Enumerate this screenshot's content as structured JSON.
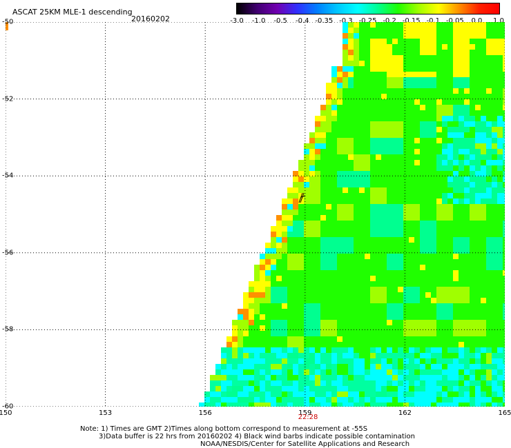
{
  "header": {
    "title": "ASCAT 25KM MLE-1 descending",
    "date": "20160202"
  },
  "colorbar": {
    "labels": [
      "-3.0",
      "-1.0",
      "-0.5",
      "-0.4",
      "-0.35",
      "-0.3",
      "-0.25",
      "-0.2",
      "-0.15",
      "-0.1",
      "-0.05",
      "0.0",
      "1.0"
    ],
    "colors": [
      "#000000",
      "#400070",
      "#7000b0",
      "#3030ff",
      "#0080ff",
      "#00c8ff",
      "#00ffff",
      "#00ff90",
      "#20ff00",
      "#a0ff00",
      "#ffff00",
      "#ff9000",
      "#ff2000",
      "#ff0000"
    ]
  },
  "axes": {
    "lat_labels": [
      "-50",
      "-52",
      "-54",
      "-56",
      "-58",
      "-60"
    ],
    "lon_labels": [
      "150",
      "153",
      "156",
      "159",
      "162",
      "165"
    ]
  },
  "time_label": "22:28",
  "notes": [
    "Note: 1) Times are GMT 2)Times along bottom correspond to measurement at -55S",
    "3)Data buffer is 22 hrs from 20160202 4) Black wind barbs indicate possible contamination",
    "NOAA/NESDIS/Center for Satellite Applications and Research"
  ]
}
